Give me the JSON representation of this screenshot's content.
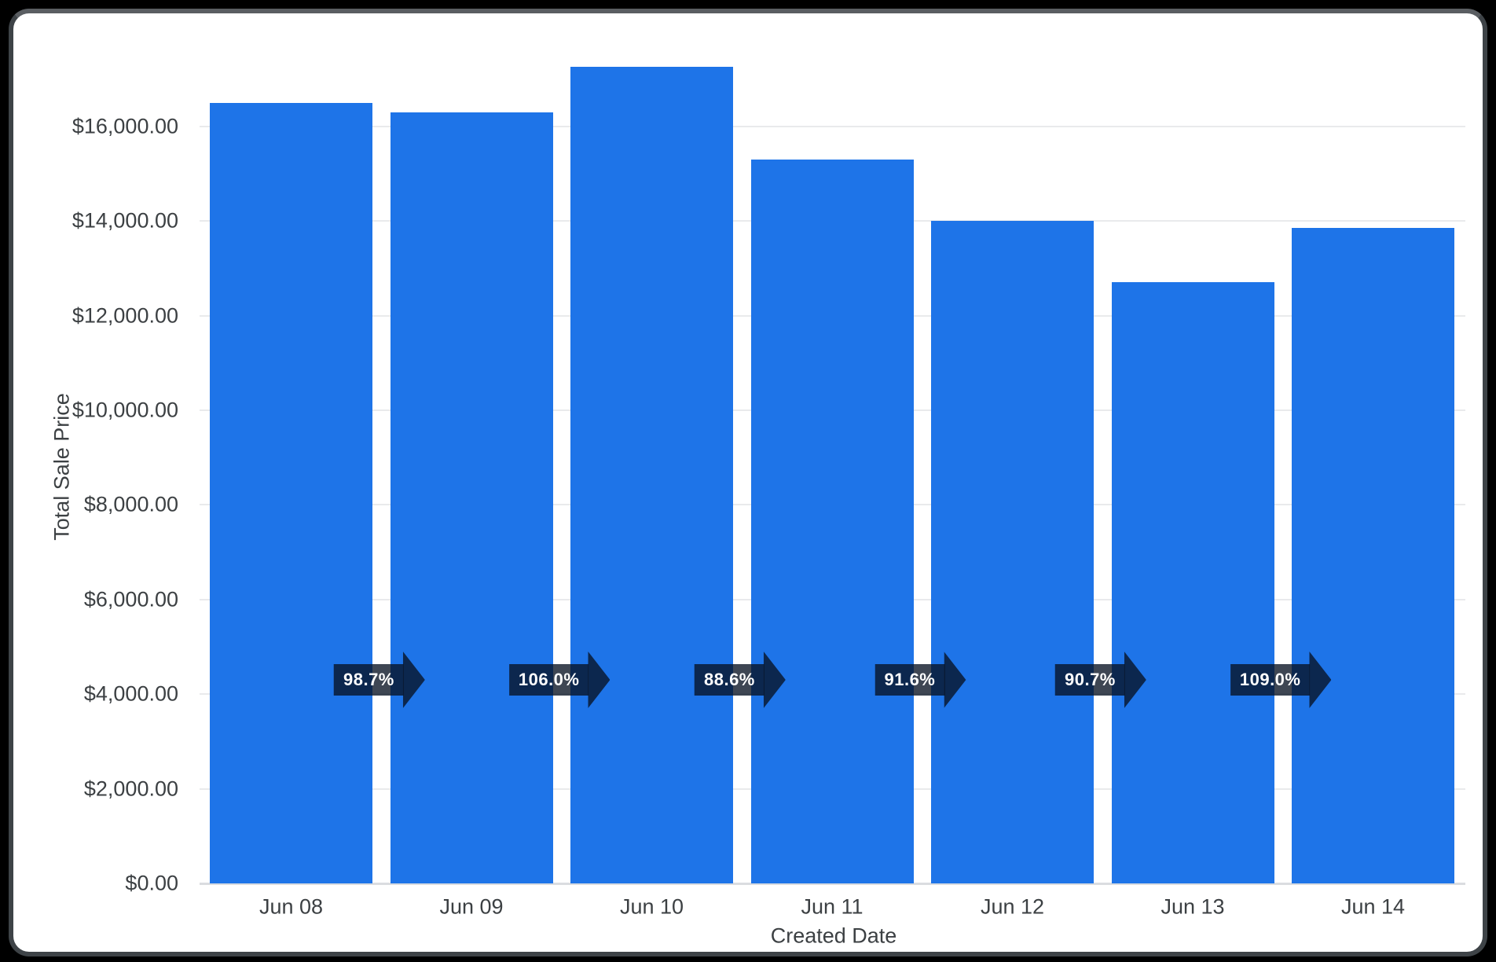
{
  "chart_data": {
    "type": "bar",
    "title": "",
    "xlabel": "Created Date",
    "ylabel": "Total Sale Price",
    "categories": [
      "Jun 08",
      "Jun 09",
      "Jun 10",
      "Jun 11",
      "Jun 12",
      "Jun 13",
      "Jun 14"
    ],
    "series": [
      {
        "name": "Total Sale Price",
        "values": [
          16500,
          16290,
          17260,
          15295,
          14010,
          12710,
          13850
        ]
      }
    ],
    "value_unit": "USD",
    "growth_badges": [
      "98.7%",
      "106.0%",
      "88.6%",
      "91.6%",
      "90.7%",
      "109.0%"
    ],
    "growth_badge_meaning": "period-over-period percent of previous bar",
    "y_ticks": [
      "$0.00",
      "$2,000.00",
      "$4,000.00",
      "$6,000.00",
      "$8,000.00",
      "$10,000.00",
      "$12,000.00",
      "$14,000.00",
      "$16,000.00"
    ],
    "y_tick_values": [
      0,
      2000,
      4000,
      6000,
      8000,
      10000,
      12000,
      14000,
      16000
    ],
    "ylim": [
      0,
      17900
    ],
    "grid": true,
    "legend": false,
    "colors": {
      "bar": "#1e74e8",
      "badge_overlay": "rgba(8,18,34,0.78)",
      "axis_text": "#3c4043",
      "gridline": "#e9eaec",
      "axis_line": "#dadce0",
      "card_background": "#ffffff",
      "frame_border": "#3e4347",
      "page_background": "#000000"
    }
  }
}
